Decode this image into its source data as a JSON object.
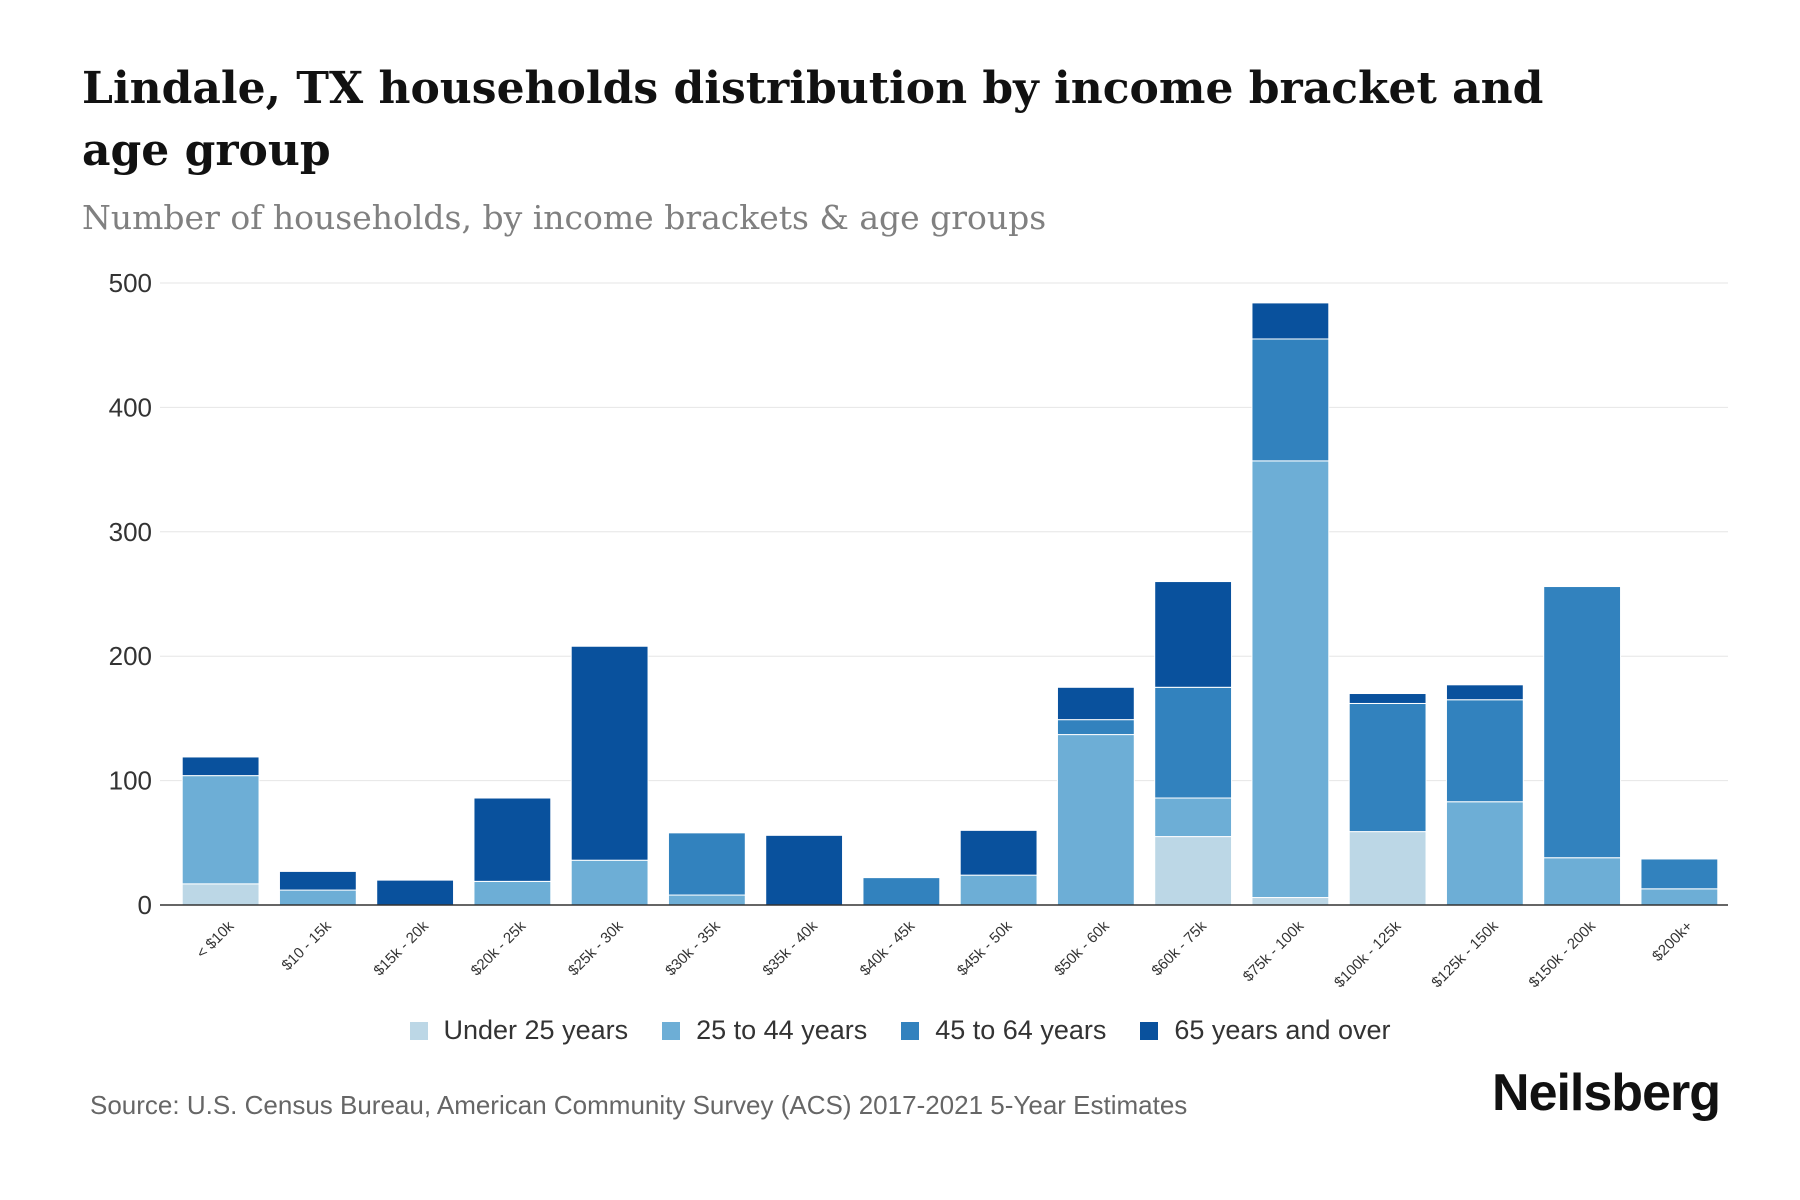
{
  "title": "Lindale, TX households distribution by income bracket and age group",
  "subtitle": "Number of households, by income brackets & age groups",
  "source": "Source: U.S. Census Bureau, American Community Survey (ACS) 2017-2021 5-Year Estimates",
  "brand": "Neilsberg",
  "colors": {
    "under25": "#bcd7e6",
    "age25to44": "#6daed6",
    "age45to64": "#3282be",
    "age65plus": "#09519d",
    "grid": "#e6e6e6",
    "axis": "#333333",
    "tick_text": "#333333"
  },
  "chart_data": {
    "type": "bar",
    "stacked": true,
    "title": "Lindale, TX households distribution by income bracket and age group",
    "xlabel": "",
    "ylabel": "",
    "ylim": [
      0,
      500
    ],
    "yticks": [
      0,
      100,
      200,
      300,
      400,
      500
    ],
    "grid": true,
    "legend_position": "bottom",
    "categories": [
      "< $10k",
      "$10 - 15k",
      "$15k - 20k",
      "$20k - 25k",
      "$25k - 30k",
      "$30k - 35k",
      "$35k - 40k",
      "$40k - 45k",
      "$45k - 50k",
      "$50k - 60k",
      "$60k - 75k",
      "$75k - 100k",
      "$100k - 125k",
      "$125k - 150k",
      "$150k - 200k",
      "$200k+"
    ],
    "series": [
      {
        "name": "Under 25 years",
        "color_key": "under25",
        "values": [
          17,
          0,
          0,
          0,
          0,
          0,
          0,
          0,
          0,
          0,
          55,
          6,
          59,
          0,
          0,
          0
        ]
      },
      {
        "name": "25 to 44 years",
        "color_key": "age25to44",
        "values": [
          87,
          12,
          0,
          19,
          36,
          8,
          0,
          0,
          24,
          137,
          31,
          351,
          0,
          83,
          38,
          13
        ]
      },
      {
        "name": "45 to 64 years",
        "color_key": "age45to64",
        "values": [
          0,
          0,
          0,
          0,
          0,
          50,
          0,
          22,
          0,
          12,
          89,
          98,
          103,
          82,
          218,
          24
        ]
      },
      {
        "name": "65 years and over",
        "color_key": "age65plus",
        "values": [
          15,
          15,
          20,
          67,
          172,
          0,
          56,
          0,
          36,
          26,
          85,
          29,
          8,
          12,
          0,
          0
        ]
      }
    ]
  }
}
